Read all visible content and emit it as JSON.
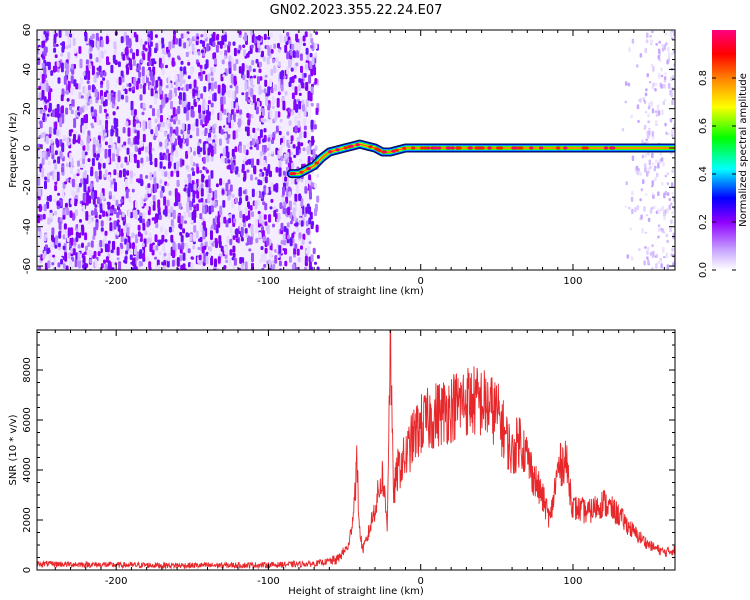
{
  "figure": {
    "title": "GN02.2023.355.22.24.E07"
  },
  "chart_data": [
    {
      "type": "heatmap",
      "xlabel": "Height of straight line (km)",
      "ylabel": "Frequency (Hz)",
      "xlim": [
        -252,
        167
      ],
      "ylim": [
        -62,
        60
      ],
      "x_ticks": [
        -200,
        -100,
        0,
        100
      ],
      "x_tick_labels": [
        "-200",
        "-100",
        "0",
        "100"
      ],
      "y_ticks": [
        -60,
        -40,
        -20,
        0,
        20,
        40,
        60
      ],
      "y_tick_labels": [
        "-60",
        "-40",
        "-20",
        "0",
        "20",
        "40",
        "60"
      ],
      "colorbar": {
        "label": "Normalized spectral amplitude",
        "range": [
          0,
          1
        ],
        "ticks": [
          0.0,
          0.2,
          0.4,
          0.6,
          0.8
        ],
        "tick_labels": [
          "0.0",
          "0.2",
          "0.4",
          "0.6",
          "0.8"
        ],
        "colors": [
          "#ffffff",
          "#8f00ff",
          "#0000ff",
          "#00ffff",
          "#00ff00",
          "#ffff00",
          "#ff8000",
          "#ff0000",
          "#ff0080"
        ]
      },
      "noise_region_x": [
        -252,
        -72
      ],
      "sparse_noise_x": [
        130,
        167
      ],
      "signal_track": {
        "x": [
          -85,
          -80,
          -75,
          -70,
          -65,
          -60,
          -55,
          -50,
          -45,
          -40,
          -35,
          -30,
          -25,
          -20,
          -15,
          -10,
          -5,
          0,
          50,
          100,
          130,
          167
        ],
        "freq": [
          -13,
          -13,
          -11,
          -9,
          -5,
          -2,
          -1,
          0,
          1,
          2,
          1,
          0,
          -2,
          -2,
          -1,
          0,
          0,
          0,
          0,
          0,
          0,
          0
        ]
      },
      "grid": false
    },
    {
      "type": "line",
      "xlabel": "Height of straight line (km)",
      "ylabel": "SNR (10 * v/v)",
      "xlim": [
        -252,
        167
      ],
      "ylim": [
        0,
        9600
      ],
      "x_ticks": [
        -200,
        -100,
        0,
        100
      ],
      "x_tick_labels": [
        "-200",
        "-100",
        "0",
        "100"
      ],
      "y_ticks": [
        0,
        2000,
        4000,
        6000,
        8000
      ],
      "y_tick_labels": [
        "0",
        "2000",
        "4000",
        "6000",
        "8000"
      ],
      "series": [
        {
          "color": "#e8272a",
          "x": [
            -252,
            -200,
            -150,
            -100,
            -70,
            -55,
            -47,
            -44,
            -42,
            -40,
            -38,
            -35,
            -30,
            -25,
            -22,
            -20,
            -18,
            -15,
            -10,
            -5,
            0,
            10,
            20,
            30,
            40,
            50,
            55,
            60,
            65,
            70,
            75,
            80,
            85,
            90,
            95,
            100,
            110,
            120,
            130,
            140,
            150,
            160,
            167
          ],
          "y": [
            250,
            200,
            180,
            200,
            250,
            400,
            1000,
            2500,
            4300,
            1500,
            800,
            1300,
            2500,
            3800,
            1800,
            9600,
            3000,
            4000,
            4500,
            5300,
            5800,
            6200,
            6500,
            6800,
            6700,
            6300,
            5500,
            4600,
            5300,
            4500,
            3600,
            2900,
            2000,
            4000,
            4500,
            2500,
            2300,
            2700,
            2200,
            1500,
            1000,
            700,
            800
          ]
        }
      ],
      "grid": false
    }
  ]
}
